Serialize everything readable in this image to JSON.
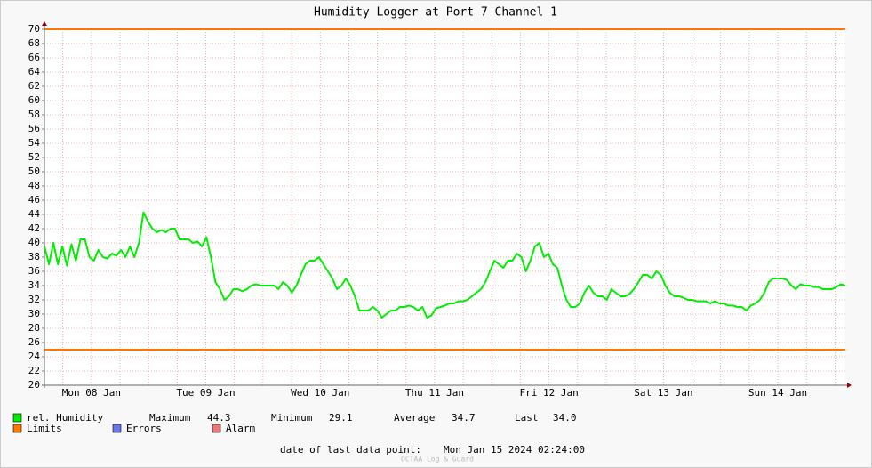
{
  "chart_data": {
    "type": "line",
    "title": "Humidity Logger at Port 7 Channel 1",
    "x_labels": [
      "Mon 08 Jan",
      "Tue 09 Jan",
      "Wed 10 Jan",
      "Thu 11 Jan",
      "Fri 12 Jan",
      "Sat 13 Jan",
      "Sun 14 Jan"
    ],
    "series": [
      {
        "name": "rel. Humidity",
        "color": "#00ee00",
        "values": [
          39.5,
          37,
          40,
          37,
          39.5,
          36.8,
          39.8,
          37.5,
          40.5,
          40.5,
          38,
          37.5,
          39,
          38,
          37.8,
          38.5,
          38.2,
          39,
          38,
          39.5,
          38,
          40,
          44.3,
          43,
          42,
          41.5,
          41.8,
          41.5,
          42,
          42,
          40.5,
          40.5,
          40.5,
          40,
          40.2,
          39.5,
          40.8,
          38,
          34.5,
          33.5,
          32,
          32.5,
          33.5,
          33.5,
          33.2,
          33.5,
          34,
          34.2,
          34,
          34,
          34,
          34,
          33.5,
          34.5,
          34,
          33,
          34,
          35.5,
          37,
          37.5,
          37.5,
          38,
          37,
          36,
          35,
          33.5,
          34,
          35,
          34,
          32.5,
          30.5,
          30.5,
          30.5,
          31,
          30.5,
          29.5,
          30,
          30.5,
          30.5,
          31,
          31,
          31.2,
          31,
          30.5,
          31,
          29.5,
          29.8,
          30.8,
          31,
          31.2,
          31.5,
          31.5,
          31.8,
          31.8,
          32,
          32.5,
          33,
          33.5,
          34.5,
          36,
          37.5,
          37,
          36.5,
          37.5,
          37.5,
          38.5,
          38,
          36,
          37.5,
          39.5,
          40,
          38,
          38.5,
          37,
          36.5,
          34,
          32,
          31,
          31,
          31.5,
          33,
          34,
          33,
          32.5,
          32.5,
          32,
          33.5,
          33,
          32.5,
          32.5,
          32.8,
          33.5,
          34.5,
          35.5,
          35.5,
          35,
          36,
          35.5,
          34,
          33,
          32.5,
          32.5,
          32.3,
          32,
          32,
          31.8,
          31.8,
          31.8,
          31.5,
          31.8,
          31.5,
          31.5,
          31.2,
          31.2,
          31,
          31,
          30.5,
          31.2,
          31.5,
          32,
          33,
          34.5,
          35,
          35,
          35,
          34.8,
          34,
          33.5,
          34.2,
          34,
          34,
          33.8,
          33.8,
          33.5,
          33.5,
          33.5,
          33.8,
          34.2,
          34
        ]
      }
    ],
    "limits": {
      "name": "Limits",
      "color": "#ff7700",
      "values": [
        70,
        25
      ]
    },
    "legend_extra": [
      {
        "name": "Errors",
        "color": "#6677ee"
      },
      {
        "name": "Alarm",
        "color": "#ee7777"
      }
    ],
    "ylim": [
      20,
      70
    ],
    "yticks": [
      20,
      22,
      24,
      26,
      28,
      30,
      32,
      34,
      36,
      38,
      40,
      42,
      44,
      46,
      48,
      50,
      52,
      54,
      56,
      58,
      60,
      62,
      64,
      66,
      68,
      70
    ],
    "grid": true,
    "stats": [
      {
        "name": "Maximum",
        "value": 44.3
      },
      {
        "name": "Minimum",
        "value": 29.1
      },
      {
        "name": "Average",
        "value": 34.7
      },
      {
        "name": "Last",
        "value": {
          "value": 34.0,
          "label": "34.0"
        }
      }
    ],
    "footer_label": "date of last data point:",
    "footer_value": "Mon Jan 15 2024 02:24:00",
    "credit": "OCTAA Log & Guard"
  }
}
